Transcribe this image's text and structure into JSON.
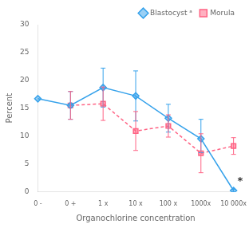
{
  "chart_data": {
    "type": "line",
    "categories": [
      "0 -",
      "0 +",
      "1 x",
      "10 x",
      "100 x",
      "1000x",
      "10 000x"
    ],
    "xlabel": "Organochlorine concentration",
    "ylabel": "Percent",
    "ylim": [
      0,
      30
    ],
    "yticks": [
      0,
      5,
      10,
      15,
      20,
      25,
      30
    ],
    "grid": false,
    "legend": "upper right",
    "series": [
      {
        "name": "Blastocyst ᵃ",
        "marker": "diamond",
        "line_style": "solid",
        "values": [
          16.7,
          15.5,
          18.7,
          17.2,
          13.2,
          9.5,
          0.2
        ],
        "yerr_lo": [
          null,
          2.5,
          3.5,
          4.5,
          2.5,
          2.5,
          0.2
        ],
        "yerr_hi": [
          null,
          2.5,
          3.5,
          4.5,
          2.5,
          3.5,
          0.2
        ]
      },
      {
        "name": "Morula",
        "marker": "square",
        "line_style": "dashed",
        "values": [
          null,
          15.5,
          15.8,
          10.9,
          11.8,
          6.9,
          8.2
        ],
        "yerr_lo": [
          null,
          2.5,
          3.0,
          3.5,
          2.0,
          3.5,
          1.5
        ],
        "yerr_hi": [
          null,
          2.5,
          3.0,
          3.5,
          2.0,
          3.5,
          1.5
        ]
      }
    ],
    "annotations": [
      {
        "text": "*",
        "x": 6.12,
        "y": 1.8
      }
    ]
  }
}
